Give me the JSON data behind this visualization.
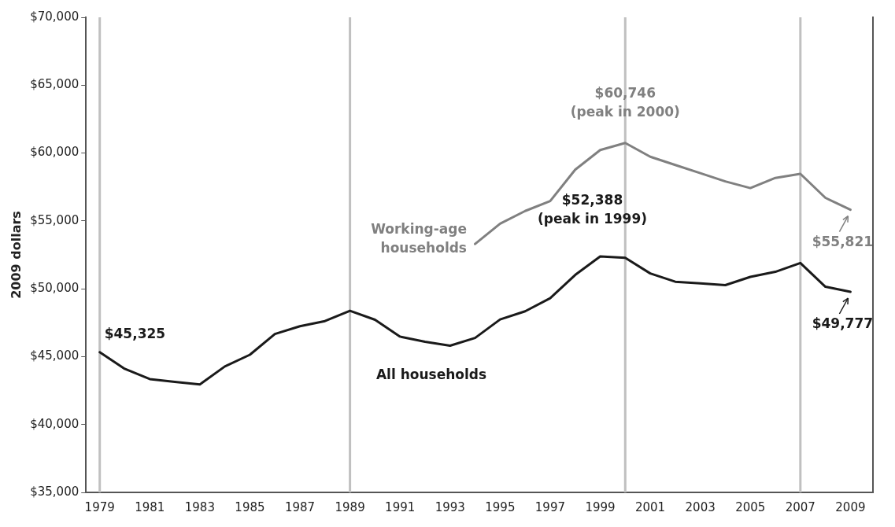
{
  "chart_data": {
    "type": "line",
    "ylabel": "2009 dollars",
    "xlim": [
      1978.45,
      2009.9
    ],
    "xticks": [
      1979,
      1981,
      1983,
      1985,
      1987,
      1989,
      1991,
      1993,
      1995,
      1997,
      1999,
      2001,
      2003,
      2005,
      2007,
      2009
    ],
    "ylim": [
      35000,
      70000
    ],
    "yticks": [
      {
        "value": 35000,
        "label": "$35,000"
      },
      {
        "value": 40000,
        "label": "$40,000"
      },
      {
        "value": 45000,
        "label": "$45,000"
      },
      {
        "value": 50000,
        "label": "$50,000"
      },
      {
        "value": 55000,
        "label": "$55,000"
      },
      {
        "value": 60000,
        "label": "$60,000"
      },
      {
        "value": 65000,
        "label": "$65,000"
      },
      {
        "value": 70000,
        "label": "$70,000"
      }
    ],
    "grid": false,
    "legend": false,
    "marker": "none",
    "line_style": "solid",
    "series": [
      {
        "name": "All households",
        "color": "#1a1a1a",
        "x": [
          1979,
          1980,
          1981,
          1982,
          1983,
          1984,
          1985,
          1986,
          1987,
          1988,
          1989,
          1990,
          1991,
          1992,
          1993,
          1994,
          1995,
          1996,
          1997,
          1998,
          1999,
          2000,
          2001,
          2002,
          2003,
          2004,
          2005,
          2006,
          2007,
          2008,
          2009
        ],
        "values": [
          45325,
          44100,
          43350,
          43140,
          42950,
          44280,
          45140,
          46670,
          47240,
          47620,
          48380,
          47720,
          46480,
          46100,
          45810,
          46380,
          47740,
          48340,
          49310,
          51020,
          52388,
          52280,
          51130,
          50520,
          50400,
          50270,
          50880,
          51250,
          51900,
          50150,
          49777
        ]
      },
      {
        "name": "Working-age households",
        "color": "#808080",
        "x": [
          1994,
          1995,
          1996,
          1997,
          1998,
          1999,
          2000,
          2001,
          2002,
          2003,
          2004,
          2005,
          2006,
          2007,
          2008,
          2009
        ],
        "values": [
          53300,
          54800,
          55730,
          56460,
          58770,
          60220,
          60746,
          59730,
          59120,
          58520,
          57910,
          57420,
          58170,
          58470,
          56700,
          55821
        ]
      }
    ],
    "ref_lines": [
      {
        "axis": "x",
        "value": 1979,
        "color": "#c0c0c0"
      },
      {
        "axis": "x",
        "value": 1989,
        "color": "#c0c0c0"
      },
      {
        "axis": "x",
        "value": 2000,
        "color": "#c0c0c0"
      },
      {
        "axis": "x",
        "value": 2007,
        "color": "#c0c0c0"
      }
    ],
    "annotations": [
      {
        "text": "$45,325",
        "x": 1979,
        "y": 45325
      },
      {
        "text": "$52,388\n(peak in 1999)",
        "x": 1999,
        "y": 52388
      },
      {
        "text": "$49,777",
        "x": 2009,
        "y": 49777
      },
      {
        "text": "$60,746\n(peak in 2000)",
        "x": 2000,
        "y": 60746
      },
      {
        "text": "$55,821",
        "x": 2009,
        "y": 55821
      }
    ]
  }
}
